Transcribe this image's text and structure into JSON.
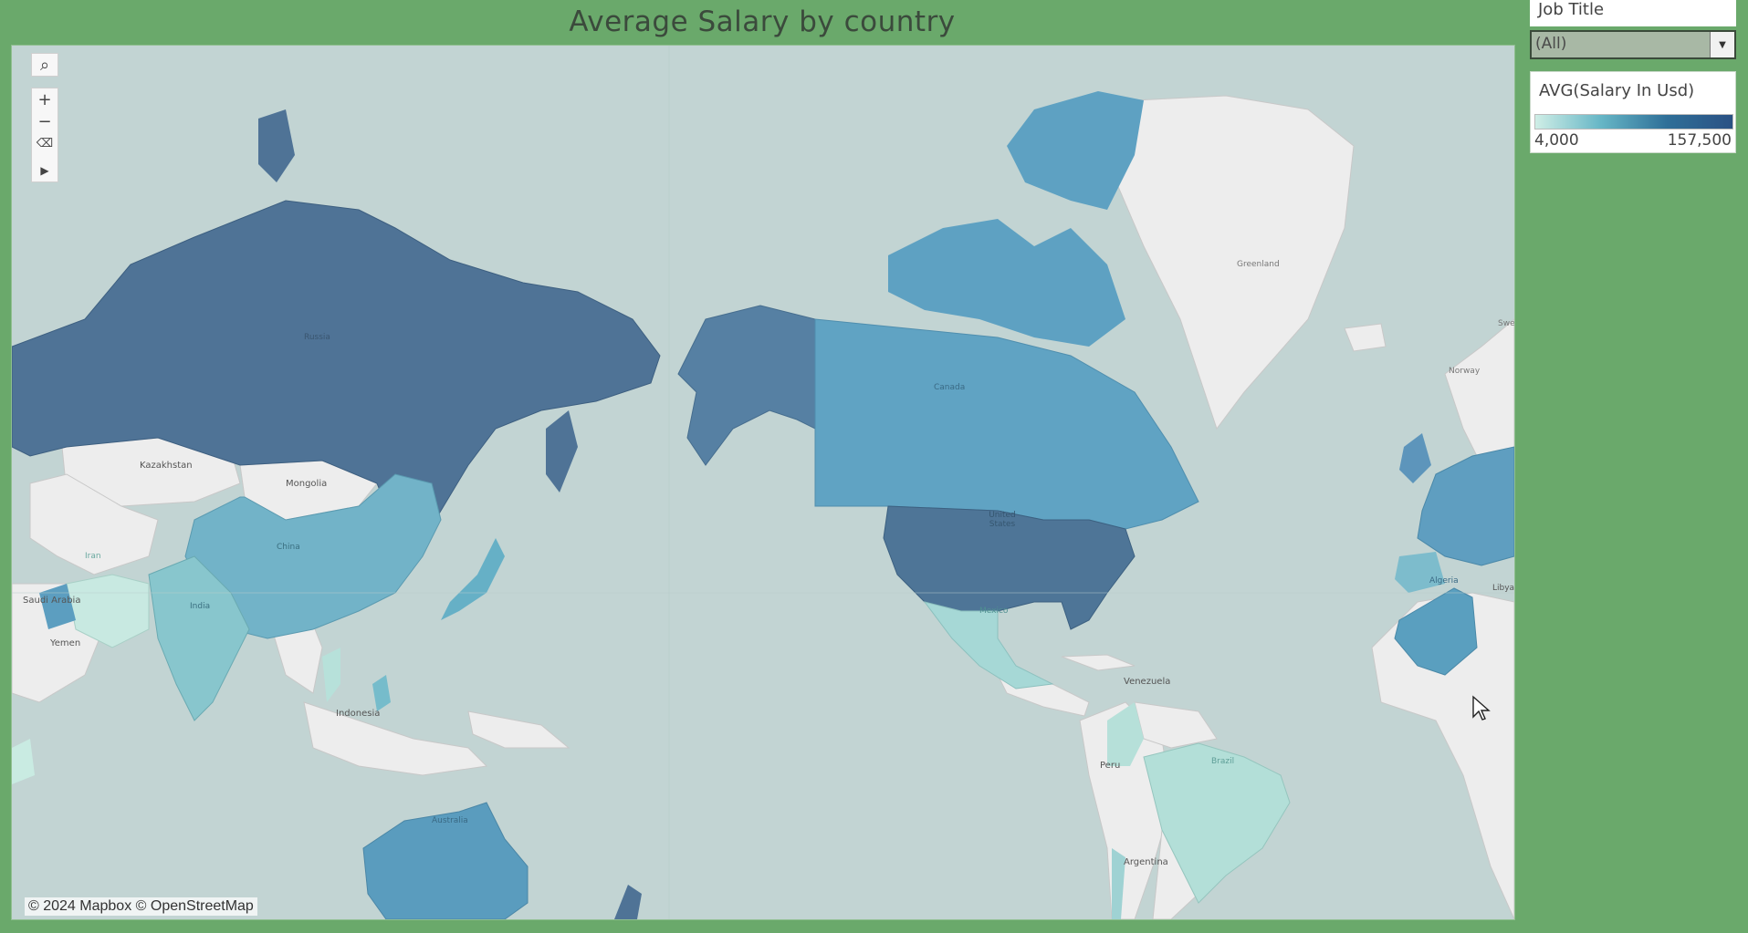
{
  "title": "Average Salary by country",
  "filter": {
    "label": "Job Title",
    "value": "(All)"
  },
  "legend": {
    "title": "AVG(Salary In Usd)",
    "min": "4,000",
    "max": "157,500",
    "color_low": "#cfeee6",
    "color_high": "#2a5184"
  },
  "attribution": "© 2024 Mapbox © OpenStreetMap",
  "map_controls": [
    "search-icon",
    "zoom-in-icon",
    "zoom-out-icon",
    "clear-selection-icon",
    "expand-toolbar-icon"
  ],
  "place_labels": [
    "Kazakhstan",
    "Mongolia",
    "Saudi Arabia",
    "Yemen",
    "Indonesia",
    "Greenland",
    "Norway",
    "Libya",
    "Venezuela",
    "Peru",
    "Argentina",
    "Swe"
  ],
  "country_labels": [
    "Russia",
    "China",
    "India",
    "Canada",
    "United States",
    "Mexico",
    "Australia",
    "Brazil",
    "Algeria",
    "Iran"
  ]
}
